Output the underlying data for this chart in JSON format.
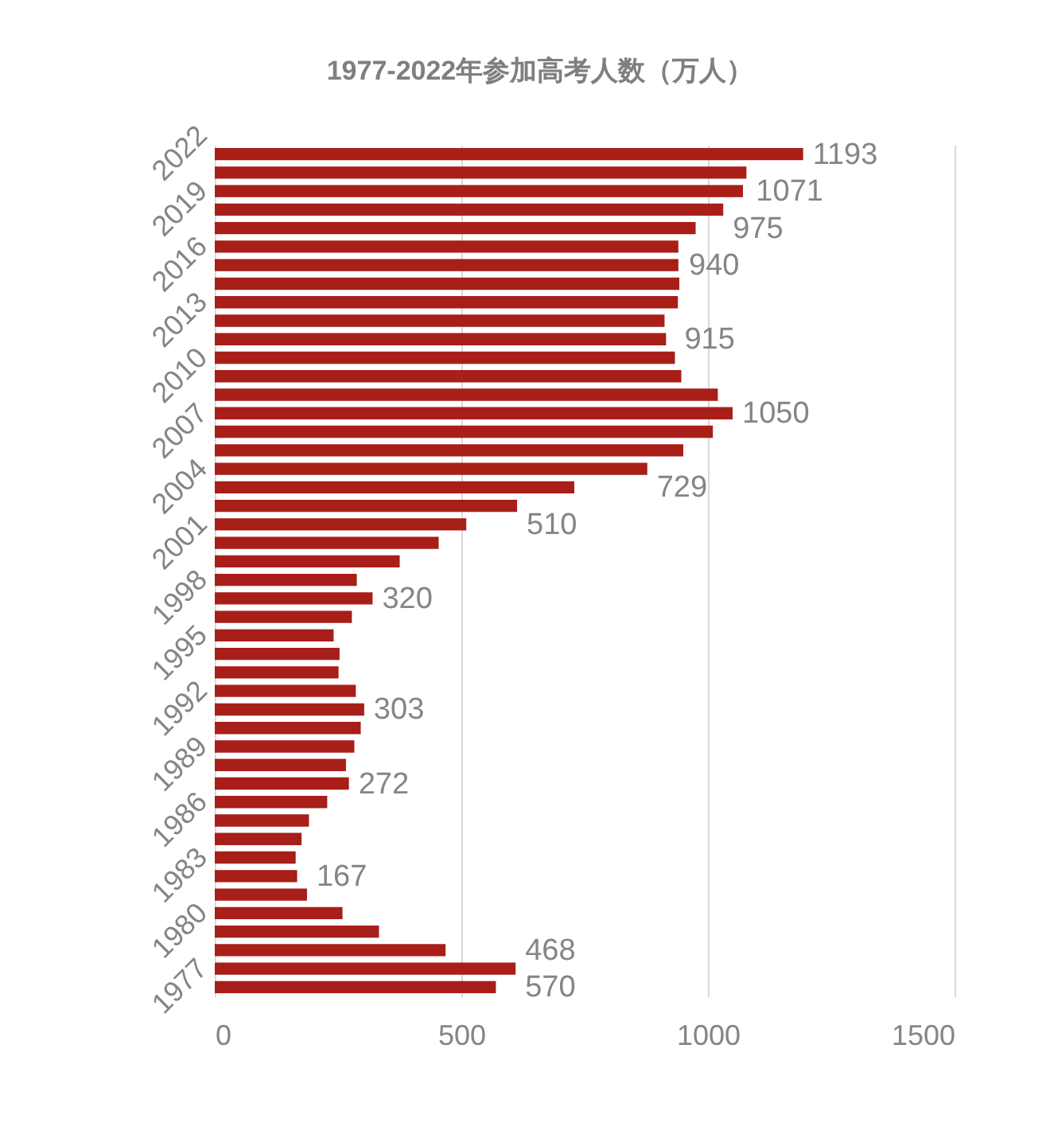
{
  "chart_data": {
    "type": "bar",
    "orientation": "horizontal",
    "title": "1977-2022年参加高考人数（万人）",
    "categories": [
      "2022",
      null,
      null,
      "2019",
      null,
      null,
      "2016",
      null,
      null,
      "2013",
      null,
      null,
      "2010",
      null,
      null,
      "2007",
      null,
      null,
      "2004",
      null,
      null,
      "2001",
      null,
      null,
      "1998",
      null,
      null,
      "1995",
      null,
      null,
      "1992",
      null,
      null,
      "1989",
      null,
      null,
      "1986",
      null,
      null,
      "1983",
      null,
      null,
      "1980",
      null,
      null,
      "1977"
    ],
    "values": [
      1193,
      1078,
      1071,
      1031,
      975,
      940,
      940,
      942,
      939,
      912,
      915,
      933,
      946,
      1020,
      1050,
      1010,
      950,
      877,
      729,
      613,
      510,
      454,
      375,
      288,
      320,
      278,
      241,
      253,
      251,
      286,
      303,
      296,
      283,
      266,
      272,
      228,
      191,
      176,
      164,
      167,
      187,
      259,
      333,
      468,
      610,
      570
    ],
    "value_labels": [
      "1193",
      null,
      "1071",
      null,
      "975",
      null,
      "940",
      null,
      null,
      null,
      "915",
      null,
      null,
      null,
      "1050",
      null,
      null,
      null,
      "729",
      null,
      "510",
      null,
      null,
      null,
      "320",
      null,
      null,
      null,
      null,
      null,
      "303",
      null,
      null,
      null,
      "272",
      null,
      null,
      null,
      null,
      "167",
      null,
      null,
      null,
      "468",
      null,
      "570"
    ],
    "color": "#a81e18",
    "xlim": [
      0,
      1500
    ],
    "xticks": [
      0,
      500,
      1000,
      1500
    ],
    "grid": "x"
  }
}
